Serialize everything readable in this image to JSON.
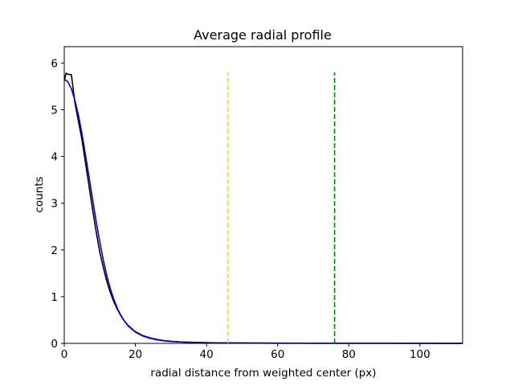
{
  "chart_data": {
    "type": "line",
    "title": "Average radial profile",
    "xlabel": "radial distance from weighted center (px)",
    "ylabel": "counts",
    "xlim": [
      0,
      112
    ],
    "ylim": [
      0,
      6.35
    ],
    "x_ticks": [
      0,
      20,
      40,
      60,
      80,
      100
    ],
    "y_ticks": [
      0,
      1,
      2,
      3,
      4,
      5,
      6
    ],
    "grid": false,
    "legend": "none",
    "series": [
      {
        "color": "#000000",
        "style": "solid",
        "x": [
          0,
          0.5,
          1,
          2,
          3,
          4,
          5,
          6,
          7,
          8,
          9,
          10,
          11,
          12,
          13,
          14,
          15,
          16,
          17,
          18,
          20,
          22,
          24,
          26,
          28,
          30,
          33,
          36,
          40,
          45,
          50,
          60,
          70,
          80,
          90,
          100,
          112
        ],
        "y": [
          5.62,
          5.78,
          5.76,
          5.75,
          5.15,
          4.75,
          4.35,
          3.85,
          3.35,
          2.85,
          2.38,
          1.95,
          1.62,
          1.32,
          1.08,
          0.88,
          0.72,
          0.58,
          0.47,
          0.38,
          0.25,
          0.17,
          0.12,
          0.085,
          0.06,
          0.045,
          0.03,
          0.022,
          0.015,
          0.01,
          0.008,
          0.005,
          0.004,
          0.003,
          0.002,
          0.002,
          0.001
        ]
      },
      {
        "color": "#0000cc",
        "style": "solid",
        "x": [
          0,
          1,
          2,
          3,
          4,
          5,
          6,
          7,
          8,
          9,
          10,
          11,
          12,
          13,
          14,
          15,
          16,
          17,
          18,
          20,
          22,
          24,
          26,
          28,
          30,
          33,
          36,
          40,
          45,
          50,
          60,
          70,
          80,
          90,
          100,
          112
        ],
        "y": [
          5.65,
          5.6,
          5.45,
          5.2,
          4.88,
          4.48,
          4.02,
          3.55,
          3.07,
          2.6,
          2.17,
          1.78,
          1.44,
          1.16,
          0.93,
          0.74,
          0.59,
          0.47,
          0.37,
          0.24,
          0.16,
          0.11,
          0.075,
          0.055,
          0.04,
          0.028,
          0.02,
          0.014,
          0.009,
          0.007,
          0.004,
          0.003,
          0.002,
          0.002,
          0.001,
          0.001
        ]
      }
    ],
    "vlines": [
      {
        "x": 46,
        "y0": 0,
        "y1": 5.8,
        "color": "#ffd700",
        "style": "dashed"
      },
      {
        "x": 76,
        "y0": 0,
        "y1": 5.8,
        "color": "#008000",
        "style": "dashed"
      }
    ]
  }
}
